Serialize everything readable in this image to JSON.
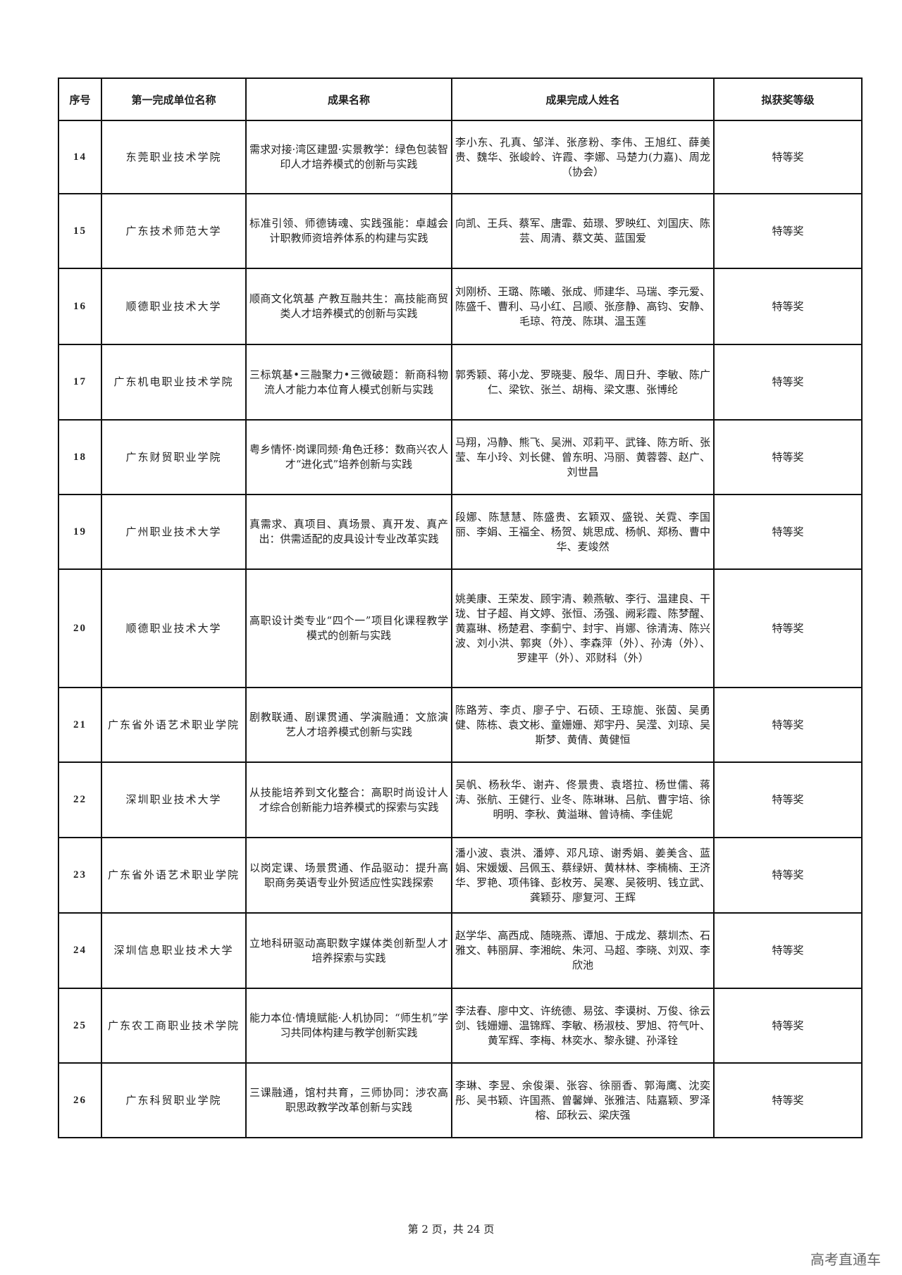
{
  "table": {
    "headers": [
      "序号",
      "第一完成单位名称",
      "成果名称",
      "成果完成人姓名",
      "拟获奖等级"
    ],
    "rows": [
      {
        "no": "14",
        "unit": "东莞职业技术学院",
        "title": "需求对接·湾区建盟·实景教学：绿色包装智印人才培养模式的创新与实践",
        "people": "李小东、孔真、邹洋、张彦粉、李伟、王旭红、薛美贵、魏华、张峻岭、许霞、李娜、马楚力(力嘉)、周龙（协会）",
        "award": "特等奖"
      },
      {
        "no": "15",
        "unit": "广东技术师范大学",
        "title": "标准引领、师德铸魂、实践强能：卓越会计职教师资培养体系的构建与实践",
        "people": "向凯、王兵、蔡军、唐霏、茹璟、罗映红、刘国庆、陈芸、周清、蔡文英、蓝国爱",
        "award": "特等奖"
      },
      {
        "no": "16",
        "unit": "顺德职业技术大学",
        "title": "顺商文化筑基 产教互融共生：高技能商贸类人才培养模式的创新与实践",
        "people": "刘刚桥、王璐、陈曦、张成、师建华、马瑞、李元爱、陈盛千、曹利、马小红、吕顺、张彦静、高钧、安静、毛琼、符茂、陈琪、温玉莲",
        "award": "特等奖"
      },
      {
        "no": "17",
        "unit": "广东机电职业技术学院",
        "title": "三标筑基•三融聚力•三微破题：新商科物流人才能力本位育人模式创新与实践",
        "people": "郭秀颖、蒋小龙、罗晓斐、殷华、周日升、李敏、陈广仁、梁钦、张兰、胡梅、梁文惠、张博纶",
        "award": "特等奖"
      },
      {
        "no": "18",
        "unit": "广东财贸职业学院",
        "title": "粤乡情怀·岗课同频·角色迁移：数商兴农人才“进化式”培养创新与实践",
        "people": "马翔，冯静、熊飞、吴洲、邓莉平、武锋、陈方昕、张莹、车小玲、刘长健、曾东明、冯丽、黄蓉蓉、赵广、刘世昌",
        "award": "特等奖"
      },
      {
        "no": "19",
        "unit": "广州职业技术大学",
        "title": "真需求、真项目、真场景、真开发、真产出：供需适配的皮具设计专业改革实践",
        "people": "段娜、陈慧慧、陈盛贵、玄颖双、盛锐、关霓、李国丽、李娟、王福全、杨贺、姚思成、杨帆、郑杨、曹中华、麦竣然",
        "award": "特等奖"
      },
      {
        "no": "20",
        "unit": "顺德职业技术大学",
        "title": "高职设计类专业“四个一”项目化课程教学模式的创新与实践",
        "people": "姚美康、王荣发、顾宇清、赖燕敏、李行、温建良、干珑、甘子超、肖文婷、张恒、汤强、阙彩霞、陈梦醒、黄嘉琳、杨楚君、李蓟宁、封宇、肖娜、徐清涛、陈兴波、刘小洪、郭爽（外）、李森萍（外）、孙涛（外）、罗建平（外）、邓财科（外）",
        "award": "特等奖"
      },
      {
        "no": "21",
        "unit": "广东省外语艺术职业学院",
        "title": "剧教联通、剧课贯通、学演融通：文旅演艺人才培养模式创新与实践",
        "people": "陈路芳、李贞、廖子宁、石硕、王琼旎、张茵、吴勇健、陈栋、袁文彬、童姗姗、郑宇丹、吴滢、刘琼、吴斯梦、黄倩、黄健恒",
        "award": "特等奖"
      },
      {
        "no": "22",
        "unit": "深圳职业技术大学",
        "title": "从技能培养到文化整合：高职时尚设计人才综合创新能力培养模式的探索与实践",
        "people": "吴帆、杨秋华、谢卉、佟景贵、袁塔拉、杨世儒、蒋涛、张航、王健行、业冬、陈琳琳、吕航、曹宇培、徐明明、李秋、黄溢琳、曾诗楠、李佳妮",
        "award": "特等奖"
      },
      {
        "no": "23",
        "unit": "广东省外语艺术职业学院",
        "title": "以岗定课、场景贯通、作品驱动：提升高职商务英语专业外贸适应性实践探索",
        "people": "潘小波、袁洪、潘婷、邓凡琼、谢秀娟、姜美含、蓝娟、宋媛媛、吕佩玉、蔡绿妍、黄林林、李楠楠、王济华、罗艳、项伟锋、彭枚芳、吴寒、吴筱明、钱立武、龚颖芬、廖复河、王辉",
        "award": "特等奖"
      },
      {
        "no": "24",
        "unit": "深圳信息职业技术大学",
        "title": "立地科研驱动高职数字媒体类创新型人才培养探索与实践",
        "people": "赵学华、高西成、随晓燕、谭旭、于成龙、蔡圳杰、石雅文、韩丽屏、李湘皖、朱河、马超、李晓、刘双、李欣池",
        "award": "特等奖"
      },
      {
        "no": "25",
        "unit": "广东农工商职业技术学院",
        "title": "能力本位·情境赋能·人机协同：“师生机”学习共同体构建与教学创新实践",
        "people": "李法春、廖中文、许统德、易弦、李谟树、万俊、徐云剑、钱姗姗、温锦辉、李敏、杨淑枝、罗旭、符气叶、黄军辉、李梅、林奕水、黎永键、孙泽铨",
        "award": "特等奖"
      },
      {
        "no": "26",
        "unit": "广东科贸职业学院",
        "title": "三课融通，馆村共育，三师协同：涉农高职思政教学改革创新与实践",
        "people": "李琳、李昱、余俊渠、张容、徐丽香、郭海鹰、沈奕彤、吴书颖、许国燕、曾馨婵、张雅洁、陆嘉颖、罗泽榕、邱秋云、梁庆强",
        "award": "特等奖"
      }
    ]
  },
  "footer": {
    "page_label": "第 2 页，共 24 页"
  },
  "watermark": "高考直通车"
}
